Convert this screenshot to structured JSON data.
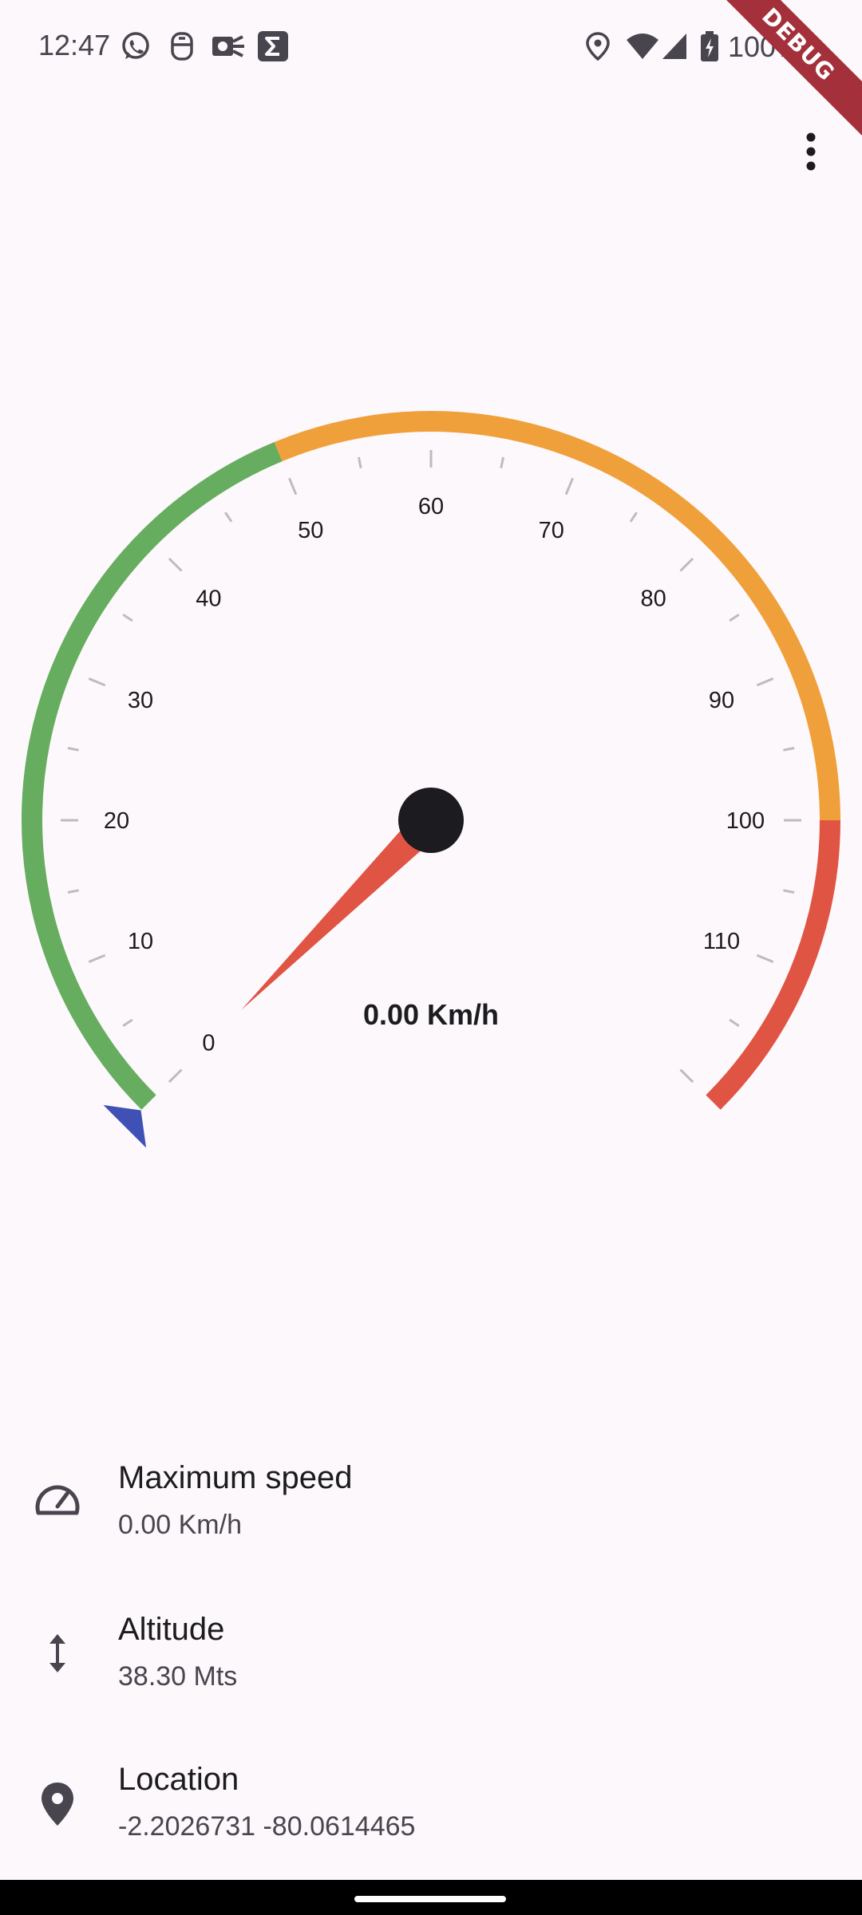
{
  "status_bar": {
    "time": "12:47",
    "battery": "100%",
    "icons": [
      "whatsapp-icon",
      "notification-icon",
      "ok-icon",
      "sigma-icon",
      "location-icon",
      "wifi-icon",
      "signal-icon",
      "battery-icon"
    ]
  },
  "debug_banner": "DEBUG",
  "speedometer": {
    "min": 0,
    "max": 120,
    "current_speed": 0,
    "speed_label": "0.00 Km/h",
    "tick_labels": [
      "0",
      "10",
      "20",
      "30",
      "40",
      "50",
      "60",
      "70",
      "80",
      "90",
      "100",
      "110"
    ],
    "ranges": [
      {
        "from": 0,
        "to": 50,
        "color": "#66ad5f"
      },
      {
        "from": 50,
        "to": 100,
        "color": "#f0a03a"
      },
      {
        "from": 100,
        "to": 120,
        "color": "#e05443"
      }
    ],
    "needle_color": "#e05443",
    "marker_color": "#3f51b5"
  },
  "info": [
    {
      "title": "Maximum speed",
      "value": "0.00 Km/h",
      "icon": "speedometer-icon"
    },
    {
      "title": "Altitude",
      "value": "38.30 Mts",
      "icon": "altitude-icon"
    },
    {
      "title": "Location",
      "value": "-2.2026731 -80.0614465",
      "icon": "location-pin-icon"
    }
  ]
}
